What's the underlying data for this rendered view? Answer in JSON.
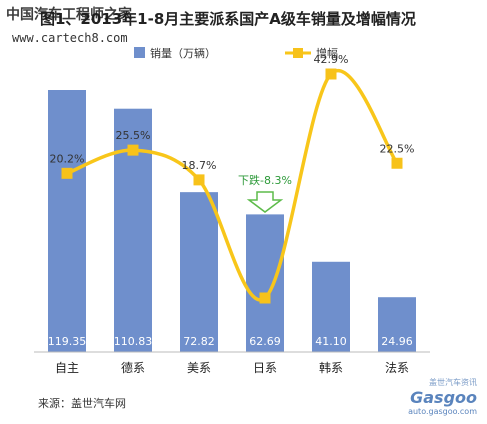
{
  "title": "图1、2013年1-8月主要派系国产A级车销量及增幅情况",
  "watermark": {
    "cn": "中国汽车工程师之家",
    "url": "www.cartech8.com"
  },
  "source": "来源：盖世汽车网",
  "logo": {
    "cn": "盖世汽车资讯",
    "main": "Gasgoo",
    "url": "auto.gasgoo.com"
  },
  "colors": {
    "bar": "#6f8fcc",
    "line": "#f8c61a",
    "marker": "#f7c21a",
    "neg_arrow": "#5dbb4a"
  },
  "chart_data": {
    "type": "bar",
    "categories": [
      "自主",
      "德系",
      "美系",
      "日系",
      "韩系",
      "法系"
    ],
    "series": [
      {
        "name": "销量（万辆）",
        "type": "bar",
        "values": [
          119.35,
          110.83,
          72.82,
          62.69,
          41.1,
          24.96
        ],
        "labels": [
          "119.35",
          "110.83",
          "72.82",
          "62.69",
          "41.10",
          "24.96"
        ]
      },
      {
        "name": "增幅",
        "type": "line",
        "smooth": true,
        "values": [
          20.2,
          25.5,
          18.7,
          -8.3,
          42.9,
          22.5
        ],
        "labels": [
          "20.2%",
          "25.5%",
          "18.7%",
          "下跌-8.3%",
          "42.9%",
          "22.5%"
        ]
      }
    ],
    "ylim_bar": [
      0,
      130
    ],
    "ylim_line": [
      -15,
      48
    ],
    "legend_position": "top",
    "grid": false
  }
}
